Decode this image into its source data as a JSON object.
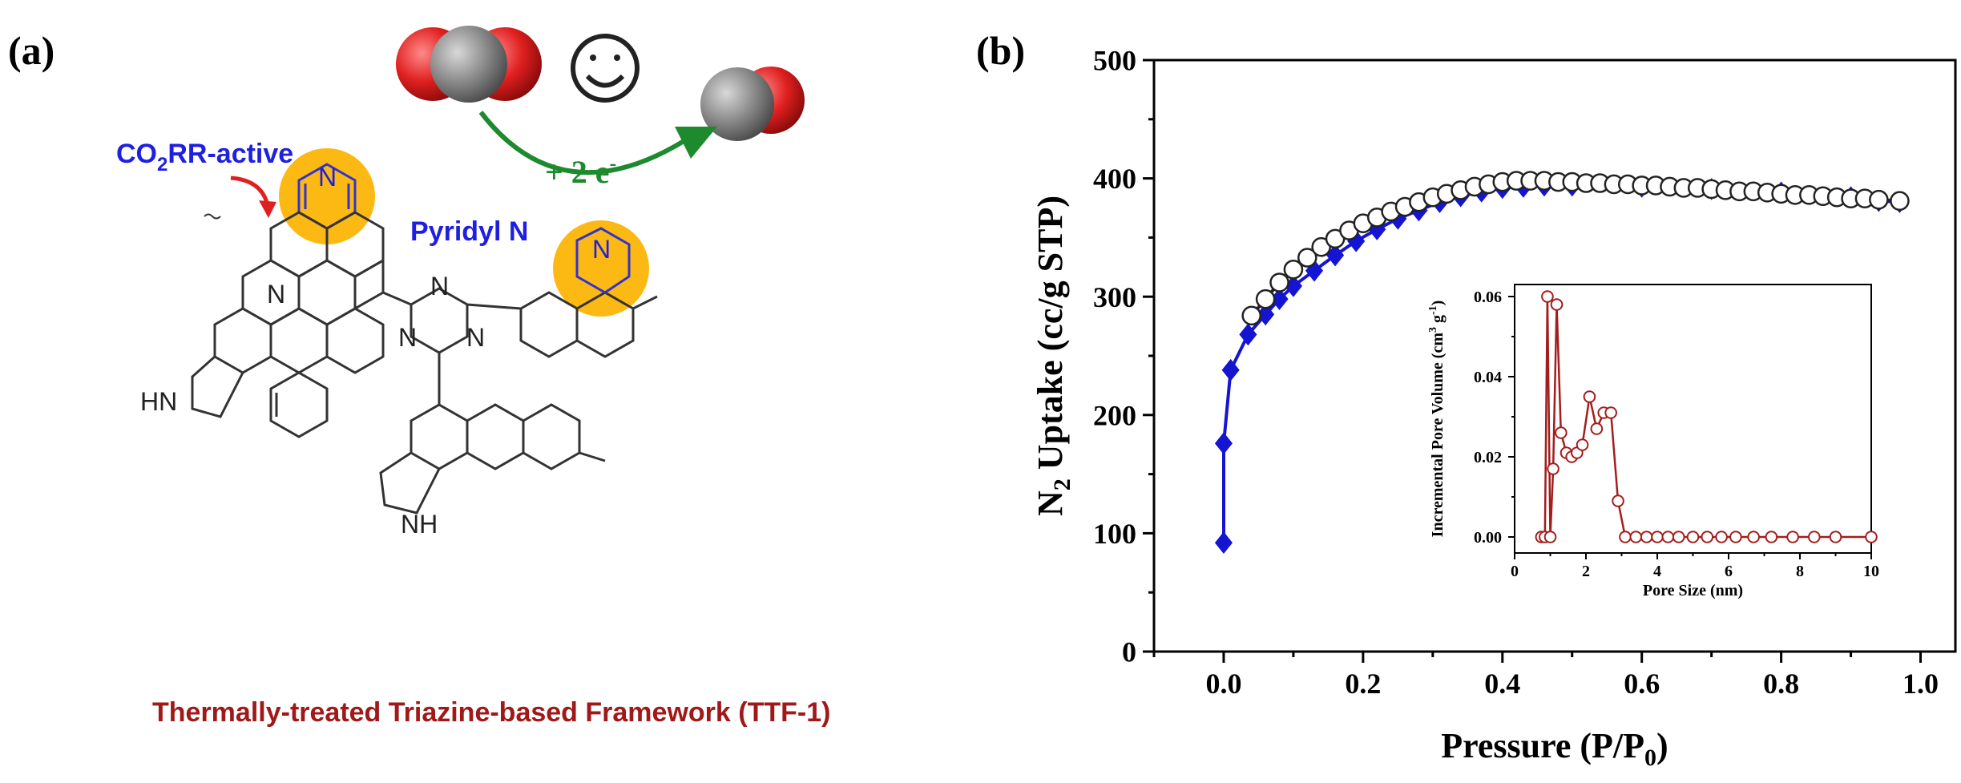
{
  "panel_a": {
    "label": "(a)",
    "co2rr_label_main": "CO",
    "co2rr_label_sub": "2",
    "co2rr_label_rest": "RR-active",
    "pyridyl_label": "Pyridyl N",
    "electron_label": "+ 2 e",
    "electron_sup": "-",
    "caption": "Thermally-treated Triazine-based Framework (TTF-1)",
    "atoms": {
      "n": "N",
      "hn": "HN",
      "nh": "NH"
    },
    "colors": {
      "highlight": "#FDB913",
      "accent_blue": "#1F1FE0",
      "caption_red": "#A01818",
      "arrow_green": "#1E8A2E",
      "oxygen": "#E02020",
      "carbon": "#808080"
    }
  },
  "panel_b": {
    "label": "(b)"
  },
  "chart_data": [
    {
      "type": "line",
      "xlabel": "Pressure (P/P",
      "xlabel_sub": "0",
      "xlabel_end": ")",
      "ylabel_pre": "N",
      "ylabel_sub": "2",
      "ylabel_post": " Uptake (cc/g STP)",
      "xlim": [
        -0.1,
        1.05
      ],
      "ylim": [
        0,
        500
      ],
      "xticks": [
        "0.0",
        "0.2",
        "0.4",
        "0.6",
        "0.8",
        "1.0"
      ],
      "yticks": [
        "0",
        "100",
        "200",
        "300",
        "400",
        "500"
      ],
      "series": [
        {
          "role": "adsorption",
          "marker": "diamond",
          "color": "#1414D2",
          "x": [
            0.0,
            0.0,
            0.01,
            0.035,
            0.06,
            0.08,
            0.1,
            0.13,
            0.16,
            0.19,
            0.22,
            0.25,
            0.28,
            0.31,
            0.34,
            0.37,
            0.4,
            0.43,
            0.46,
            0.5,
            0.6,
            0.7,
            0.8,
            0.9,
            0.94,
            0.97
          ],
          "y": [
            92,
            176,
            238,
            268,
            285,
            298,
            309,
            322,
            335,
            347,
            357,
            366,
            373,
            380,
            385,
            389,
            392,
            393,
            394,
            394,
            393,
            391,
            388,
            384,
            381,
            380
          ]
        },
        {
          "role": "desorption",
          "marker": "circle-open",
          "color": "#222222",
          "x": [
            0.04,
            0.06,
            0.08,
            0.1,
            0.12,
            0.14,
            0.16,
            0.18,
            0.2,
            0.22,
            0.24,
            0.26,
            0.28,
            0.3,
            0.32,
            0.34,
            0.36,
            0.38,
            0.4,
            0.42,
            0.44,
            0.46,
            0.48,
            0.5,
            0.52,
            0.54,
            0.56,
            0.58,
            0.6,
            0.62,
            0.64,
            0.66,
            0.68,
            0.7,
            0.72,
            0.74,
            0.76,
            0.78,
            0.8,
            0.82,
            0.84,
            0.86,
            0.88,
            0.9,
            0.92,
            0.94,
            0.97
          ],
          "y": [
            284,
            298,
            312,
            323,
            333,
            342,
            349,
            356,
            362,
            367,
            372,
            376,
            380,
            384,
            387,
            390,
            393,
            395,
            397,
            398,
            398,
            398,
            397,
            397,
            396,
            396,
            395,
            395,
            394,
            394,
            393,
            392,
            392,
            391,
            390,
            389,
            389,
            388,
            387,
            386,
            386,
            385,
            384,
            383,
            383,
            382,
            381
          ]
        }
      ]
    },
    {
      "type": "line",
      "role": "inset",
      "xlabel": "Pore Size (nm)",
      "ylabel_pre": "Incremental Pore Volume (cm",
      "ylabel_sup": "3",
      "ylabel_mid": " g",
      "ylabel_sup2": "-1",
      "ylabel_end": ")",
      "xlim": [
        0,
        10
      ],
      "ylim": [
        -0.004,
        0.063
      ],
      "xticks": [
        "0",
        "2",
        "4",
        "6",
        "8",
        "10"
      ],
      "yticks": [
        "0.00",
        "0.02",
        "0.04",
        "0.06"
      ],
      "series": [
        {
          "marker": "circle-open",
          "color": "#A31D1D",
          "x": [
            0.75,
            0.85,
            0.92,
            1.0,
            1.08,
            1.18,
            1.3,
            1.45,
            1.6,
            1.75,
            1.9,
            2.1,
            2.3,
            2.5,
            2.7,
            2.9,
            3.1,
            3.4,
            3.7,
            4.0,
            4.3,
            4.6,
            5.0,
            5.4,
            5.8,
            6.2,
            6.7,
            7.2,
            7.8,
            8.4,
            9.0,
            10.0
          ],
          "y": [
            0.0,
            0.0,
            0.06,
            0.0,
            0.017,
            0.058,
            0.026,
            0.021,
            0.02,
            0.021,
            0.023,
            0.035,
            0.027,
            0.031,
            0.031,
            0.009,
            0.0,
            0.0,
            0.0,
            0.0,
            0.0,
            0.0,
            0.0,
            0.0,
            0.0,
            0.0,
            0.0,
            0.0,
            0.0,
            0.0,
            0.0,
            0.0
          ]
        }
      ]
    }
  ]
}
